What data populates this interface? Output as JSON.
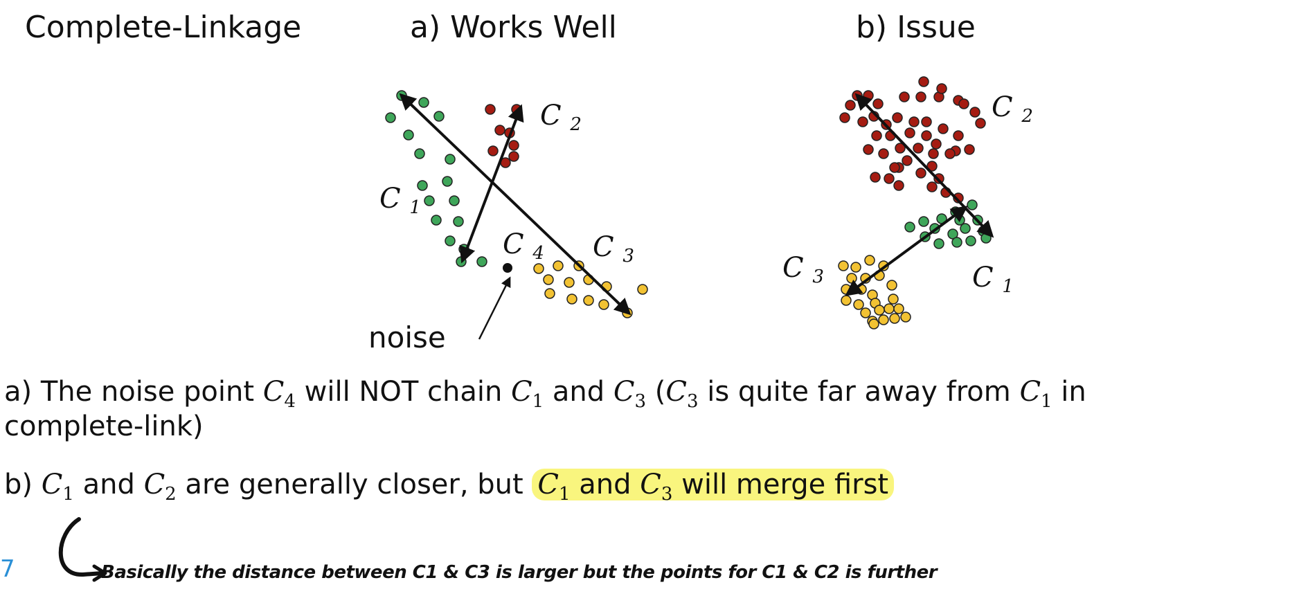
{
  "headers": {
    "main": "Complete-Linkage",
    "panel_a": "a) Works Well",
    "panel_b": "b) Issue"
  },
  "panel_a": {
    "label_c1": "C1",
    "label_c2": "C2",
    "label_c3": "C3",
    "label_c4": "C4",
    "noise_label": "noise"
  },
  "panel_b": {
    "label_c1": "C1",
    "label_c2": "C2",
    "label_c3": "C3"
  },
  "colors": {
    "green": "#3fa65a",
    "red": "#a51c12",
    "yellow": "#f2c233",
    "highlight": "#f9f57e",
    "page_number": "#2a8fd6"
  },
  "text": {
    "line_a_prefix": "a) The noise point ",
    "c4": "C",
    "c4_sub": "4",
    "line_a_mid1": " will NOT chain ",
    "c1": "C",
    "c1_sub": "1",
    "and": " and ",
    "c3": "C",
    "c3_sub": "3",
    "paren_open": " (",
    "line_a_mid2": " is quite far away from ",
    "line_a_tail": " in",
    "line_a2": "complete-link)",
    "line_b_prefix": "b) ",
    "c2_sub": "2",
    "line_b_mid": " are generally closer, but ",
    "line_b_hl_end": " will merge first"
  },
  "page_number": "7",
  "handwritten_note": "Basically the distance between C1 & C3 is larger but the points for C1 & C2 is further"
}
